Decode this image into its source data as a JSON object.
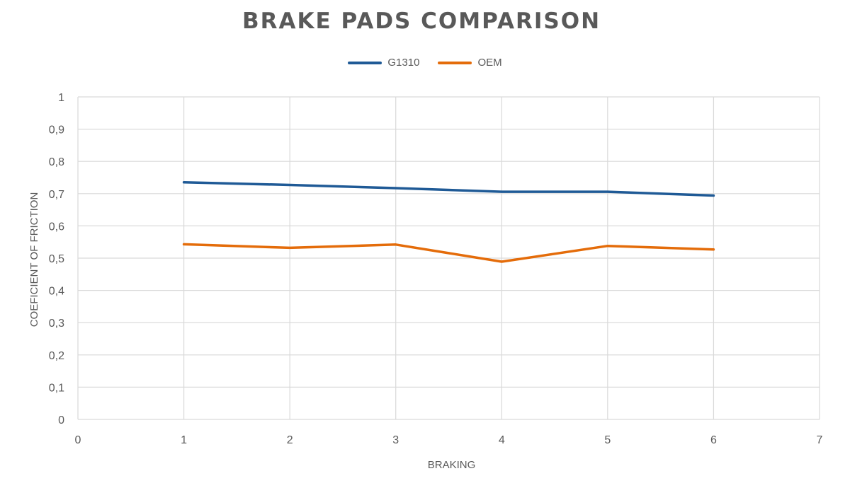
{
  "chart_data": {
    "type": "line",
    "title": "BRAKE PADS COMPARISON",
    "xlabel": "BRAKING",
    "ylabel": "COEFICIENT OF FRICTION",
    "xlim": [
      0,
      7
    ],
    "ylim": [
      0,
      1
    ],
    "x_ticks": [
      "0",
      "1",
      "2",
      "3",
      "4",
      "5",
      "6",
      "7"
    ],
    "y_ticks": [
      "0",
      "0,1",
      "0,2",
      "0,3",
      "0,4",
      "0,5",
      "0,6",
      "0,7",
      "0,8",
      "0,9",
      "1"
    ],
    "grid": true,
    "legend_position": "top",
    "x": [
      1,
      2,
      3,
      4,
      5,
      6
    ],
    "series": [
      {
        "name": "G1310",
        "color": "#1f5a96",
        "values": [
          0.735,
          0.727,
          0.717,
          0.706,
          0.706,
          0.694
        ]
      },
      {
        "name": "OEM",
        "color": "#e46c0a",
        "values": [
          0.543,
          0.532,
          0.542,
          0.489,
          0.538,
          0.527
        ]
      }
    ]
  }
}
